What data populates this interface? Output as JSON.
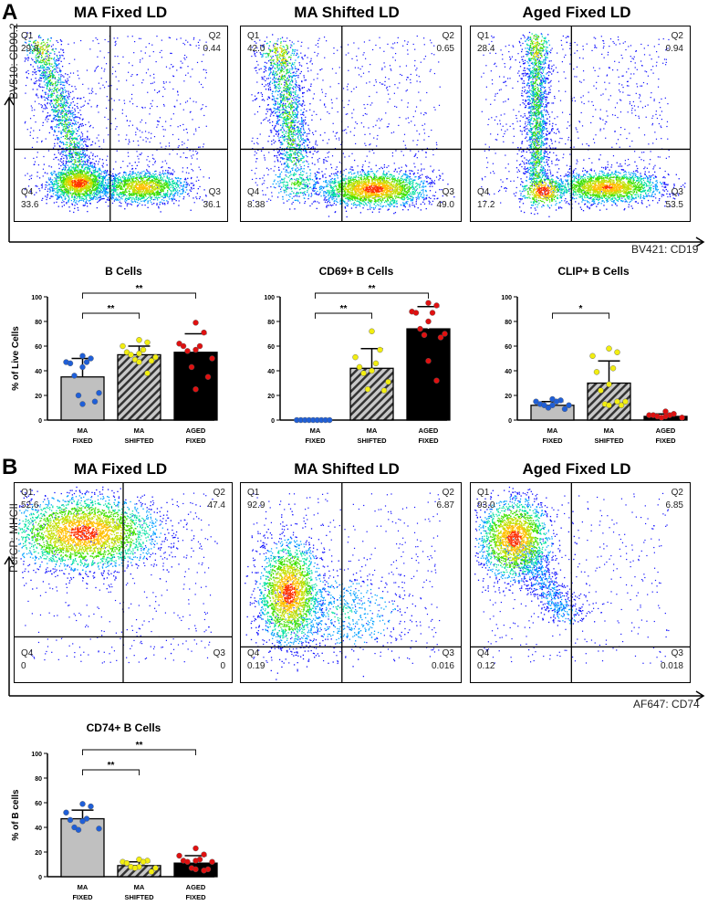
{
  "panel_a": {
    "label": "A",
    "x_axis": "BV421: CD19",
    "y_axis": "BV510: CD90.2",
    "plots": [
      {
        "title": "MA Fixed LD",
        "q1": "29.8",
        "q2": "0.44",
        "q3": "36.1",
        "q4": "33.6"
      },
      {
        "title": "MA Shifted LD",
        "q1": "42.0",
        "q2": "0.65",
        "q3": "49.0",
        "q4": "8.38"
      },
      {
        "title": "Aged Fixed LD",
        "q1": "28.4",
        "q2": "0.94",
        "q3": "53.5",
        "q4": "17.2"
      }
    ]
  },
  "panel_b": {
    "label": "B",
    "x_axis": "AF647: CD74",
    "y_axis": "PerCP: MHCII",
    "plots": [
      {
        "title": "MA Fixed LD",
        "q1": "52.6",
        "q2": "47.4",
        "q3": "0",
        "q4": "0"
      },
      {
        "title": "MA Shifted LD",
        "q1": "92.9",
        "q2": "6.87",
        "q3": "0.016",
        "q4": "0.19"
      },
      {
        "title": "Aged Fixed LD",
        "q1": "93.0",
        "q2": "6.85",
        "q3": "0.018",
        "q4": "0.12"
      }
    ]
  },
  "quadrant_names": [
    "Q1",
    "Q2",
    "Q3",
    "Q4"
  ],
  "colors": {
    "ma_fixed_bar": "#c0c0c0",
    "aged_bar": "#000000",
    "blue": "#1f5fd8",
    "yellow": "#f2ee10",
    "red": "#e01010"
  },
  "chart_data": [
    {
      "type": "bar",
      "title": "B Cells",
      "ylabel": "% of Live Cells",
      "ylim": [
        0,
        100
      ],
      "yticks": [
        "0",
        "20",
        "40",
        "60",
        "80",
        "100"
      ],
      "categories": [
        "MA\nFIXED",
        "MA\nSHIFTED",
        "AGED\nFIXED"
      ],
      "values": [
        35,
        53,
        55
      ],
      "error_upper": [
        50,
        60,
        70
      ],
      "points": [
        [
          52,
          50,
          47,
          47,
          46,
          43,
          36,
          22,
          20,
          15,
          13
        ],
        [
          65,
          63,
          60,
          57,
          55,
          54,
          53,
          51,
          49,
          48,
          47,
          38
        ],
        [
          79,
          71,
          62,
          60,
          60,
          57,
          56,
          50,
          43,
          35,
          25
        ]
      ],
      "significance": [
        {
          "from": 0,
          "to": 1,
          "label": "**"
        },
        {
          "from": 0,
          "to": 2,
          "label": "**"
        }
      ]
    },
    {
      "type": "bar",
      "title": "CD69+ B Cells",
      "ylabel": "",
      "ylim": [
        0,
        100
      ],
      "yticks": [
        "0",
        "20",
        "40",
        "60",
        "80",
        "100"
      ],
      "categories": [
        "MA\nFIXED",
        "MA\nSHIFTED",
        "AGED\nFIXED"
      ],
      "values": [
        0,
        42,
        74
      ],
      "error_upper": [
        0,
        58,
        92
      ],
      "points": [
        [
          0,
          0,
          0,
          0,
          0,
          0,
          0,
          0,
          0
        ],
        [
          72,
          57,
          51,
          46,
          43,
          40,
          38,
          31,
          25,
          24
        ],
        [
          95,
          93,
          88,
          87,
          87,
          80,
          74,
          70,
          69,
          67,
          48,
          32
        ]
      ],
      "significance": [
        {
          "from": 0,
          "to": 1,
          "label": "**"
        },
        {
          "from": 0,
          "to": 2,
          "label": "**"
        }
      ]
    },
    {
      "type": "bar",
      "title": "CLIP+ B Cells",
      "ylabel": "",
      "ylim": [
        0,
        100
      ],
      "yticks": [
        "0",
        "20",
        "40",
        "60",
        "80",
        "100"
      ],
      "categories": [
        "MA\nFIXED",
        "MA\nSHIFTED",
        "AGED\nFIXED"
      ],
      "values": [
        12,
        30,
        3
      ],
      "error_upper": [
        15,
        48,
        5
      ],
      "points": [
        [
          17,
          16,
          15,
          15,
          13,
          12,
          12,
          12,
          10,
          9
        ],
        [
          58,
          55,
          52,
          42,
          39,
          29,
          24,
          15,
          13,
          12,
          12,
          15
        ],
        [
          7,
          5,
          4,
          4,
          4,
          3,
          3,
          2,
          2
        ]
      ],
      "significance": [
        {
          "from": 0,
          "to": 1,
          "label": "*"
        }
      ]
    },
    {
      "type": "bar",
      "title": "CD74+ B Cells",
      "ylabel": "% of B cells",
      "ylim": [
        0,
        100
      ],
      "yticks": [
        "0",
        "20",
        "40",
        "60",
        "80",
        "100"
      ],
      "categories": [
        "MA\nFIXED",
        "MA\nSHIFTED",
        "AGED\nFIXED"
      ],
      "values": [
        47,
        9,
        11
      ],
      "error_upper": [
        54,
        12,
        17
      ],
      "points": [
        [
          59,
          57,
          52,
          47,
          46,
          45,
          40,
          39,
          38
        ],
        [
          14,
          13,
          12,
          12,
          11,
          8,
          8,
          7,
          7,
          4
        ],
        [
          23,
          18,
          17,
          14,
          13,
          13,
          12,
          12,
          7,
          6,
          6,
          5
        ]
      ],
      "significance": [
        {
          "from": 0,
          "to": 1,
          "label": "**"
        },
        {
          "from": 0,
          "to": 2,
          "label": "**"
        }
      ]
    }
  ]
}
